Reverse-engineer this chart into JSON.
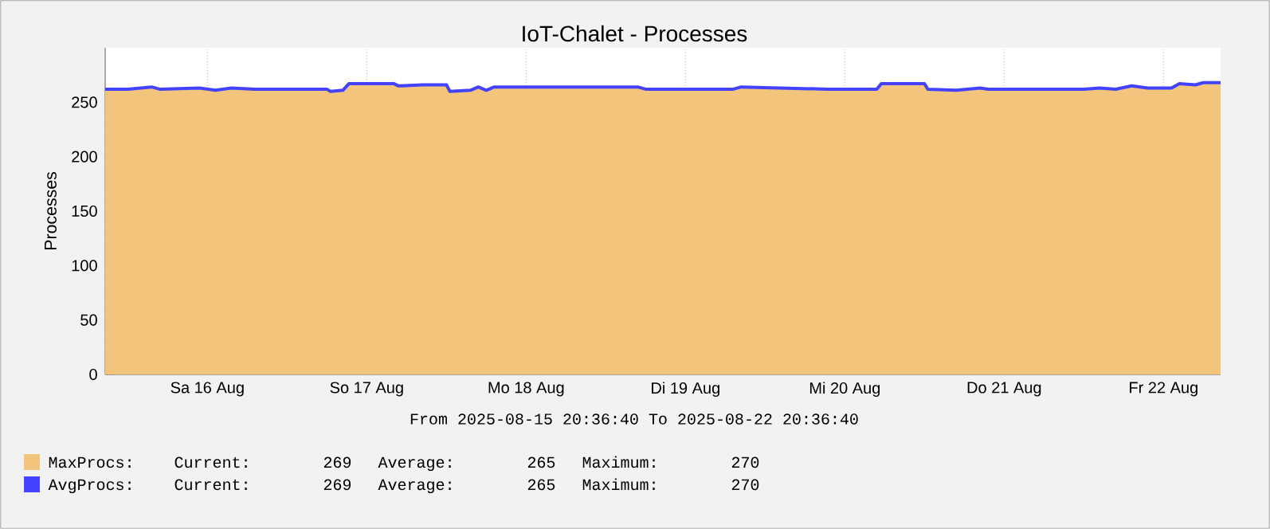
{
  "chart_data": {
    "type": "area",
    "title": "IoT-Chalet - Processes",
    "ylabel": "Processes",
    "x": [
      "2025-08-15T20:36",
      "2025-08-16T00:00",
      "2025-08-16T03:36",
      "2025-08-16T04:48",
      "2025-08-16T10:48",
      "2025-08-16T13:12",
      "2025-08-16T15:36",
      "2025-08-16T19:12",
      "2025-08-17T06:00",
      "2025-08-17T06:30",
      "2025-08-17T08:24",
      "2025-08-17T09:18",
      "2025-08-17T16:06",
      "2025-08-17T16:48",
      "2025-08-17T20:24",
      "2025-08-18T00:00",
      "2025-08-18T00:30",
      "2025-08-18T03:36",
      "2025-08-18T04:48",
      "2025-08-18T06:00",
      "2025-08-18T07:12",
      "2025-08-19T04:48",
      "2025-08-19T06:00",
      "2025-08-19T19:12",
      "2025-08-19T20:24",
      "2025-08-20T09:30",
      "2025-08-20T16:48",
      "2025-08-20T17:30",
      "2025-08-21T00:00",
      "2025-08-21T00:30",
      "2025-08-21T04:48",
      "2025-08-21T08:24",
      "2025-08-21T09:36",
      "2025-08-22T00:00",
      "2025-08-22T02:24",
      "2025-08-22T04:48",
      "2025-08-22T07:12",
      "2025-08-22T09:36",
      "2025-08-22T13:12",
      "2025-08-22T14:24",
      "2025-08-22T16:48",
      "2025-08-22T18:00",
      "2025-08-22T20:36"
    ],
    "series": [
      {
        "name": "MaxProcs:",
        "color": "#f2c47c",
        "values": [
          262,
          262,
          264,
          262,
          263,
          261,
          263,
          262,
          262,
          260,
          261,
          267,
          267,
          265,
          266,
          266,
          260,
          261,
          264,
          261,
          264,
          264,
          262,
          262,
          264,
          262,
          262,
          267,
          267,
          262,
          261,
          263,
          262,
          262,
          263,
          262,
          265,
          263,
          263,
          267,
          266,
          268,
          268
        ]
      },
      {
        "name": "AvgProcs:",
        "type": "line",
        "color": "#4242ff",
        "values": [
          262,
          262,
          264,
          262,
          263,
          261,
          263,
          262,
          262,
          260,
          261,
          267,
          267,
          265,
          266,
          266,
          260,
          261,
          264,
          261,
          264,
          264,
          262,
          262,
          264,
          262,
          262,
          267,
          267,
          262,
          261,
          263,
          262,
          262,
          263,
          262,
          265,
          263,
          263,
          267,
          266,
          268,
          268
        ]
      }
    ],
    "xlim": [
      "2025-08-15T20:36",
      "2025-08-22T20:36"
    ],
    "xticks": [
      {
        "value": "2025-08-16T12:00",
        "label": "Sa 16 Aug"
      },
      {
        "value": "2025-08-17T12:00",
        "label": "So 17 Aug"
      },
      {
        "value": "2025-08-18T12:00",
        "label": "Mo 18 Aug"
      },
      {
        "value": "2025-08-19T12:00",
        "label": "Di 19 Aug"
      },
      {
        "value": "2025-08-20T12:00",
        "label": "Mi 20 Aug"
      },
      {
        "value": "2025-08-21T12:00",
        "label": "Do 21 Aug"
      },
      {
        "value": "2025-08-22T12:00",
        "label": "Fr 22 Aug"
      }
    ],
    "ylim": [
      0,
      300
    ],
    "yticks": [
      0,
      50,
      100,
      150,
      200,
      250
    ],
    "grid": true,
    "legend": "bottom left",
    "annotations": [
      "From 2025-08-15 20:36:40 To 2025-08-22 20:36:40",
      "Current:",
      "269",
      "Average:",
      "265",
      "Maximum:",
      "270",
      "Current:",
      "269",
      "Average:",
      "265",
      "Maximum:",
      "270"
    ]
  }
}
